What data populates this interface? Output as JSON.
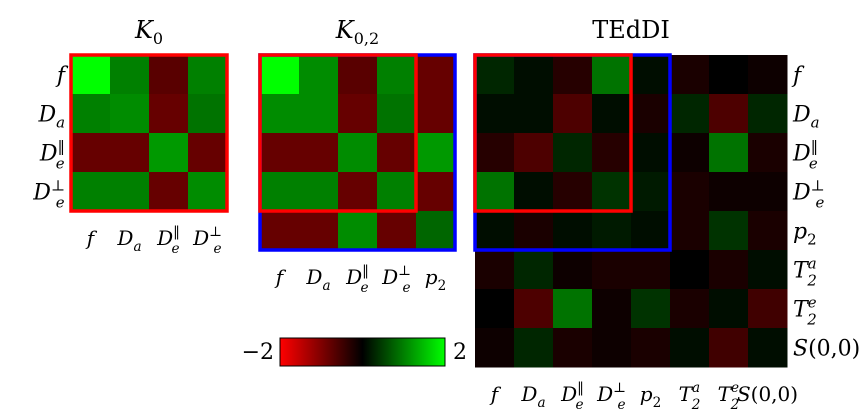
{
  "chart_data": {
    "type": "heatmap",
    "colorbar": {
      "min": -2,
      "max": 2,
      "min_label": "−2",
      "max_label": "2",
      "colors": [
        "#ff0000",
        "#000000",
        "#00ff00"
      ]
    },
    "overlay_colors": {
      "k0_block": "#ff0000",
      "k02_block": "#0000ff"
    },
    "panels": [
      {
        "title": "K_0",
        "title_main": "K",
        "title_sub": "0",
        "row_labels": [
          "f",
          "D_a",
          "D_e^||",
          "D_e^⊥"
        ],
        "col_labels": [
          "f",
          "D_a",
          "D_e^||",
          "D_e^⊥"
        ],
        "values": [
          [
            2.0,
            1.0,
            -0.7,
            1.0
          ],
          [
            1.0,
            1.1,
            -0.8,
            0.9
          ],
          [
            -0.8,
            -0.8,
            1.2,
            -0.8
          ],
          [
            1.0,
            1.0,
            -0.8,
            1.1
          ]
        ],
        "highlights": [
          {
            "rows": [
              0,
              3
            ],
            "cols": [
              0,
              3
            ],
            "color": "#ff0000"
          }
        ]
      },
      {
        "title": "K_{0,2}",
        "title_main": "K",
        "title_sub": "0,2",
        "row_labels": [
          "f",
          "D_a",
          "D_e^||",
          "D_e^⊥",
          "p_2"
        ],
        "col_labels": [
          "f",
          "D_a",
          "D_e^||",
          "D_e^⊥",
          "p_2"
        ],
        "values": [
          [
            2.0,
            1.1,
            -0.7,
            1.0,
            -0.8
          ],
          [
            1.1,
            1.1,
            -0.8,
            0.9,
            -0.8
          ],
          [
            -0.8,
            -0.8,
            1.1,
            -0.8,
            1.2
          ],
          [
            1.0,
            1.0,
            -0.8,
            1.0,
            -0.8
          ],
          [
            -0.8,
            -0.8,
            1.1,
            -0.8,
            0.8
          ]
        ],
        "highlights": [
          {
            "rows": [
              0,
              3
            ],
            "cols": [
              0,
              3
            ],
            "color": "#ff0000"
          },
          {
            "rows": [
              0,
              4
            ],
            "cols": [
              0,
              4
            ],
            "color": "#0000ff"
          }
        ]
      },
      {
        "title": "TEdDI",
        "row_labels": [
          "f",
          "D_a",
          "D_e^||",
          "D_e^⊥",
          "p_2",
          "T_2^a",
          "T_2^e",
          "S(0,0)"
        ],
        "col_labels": [
          "f",
          "D_a",
          "D_e^||",
          "D_e^⊥",
          "p_2",
          "T_2^a",
          "T_2^e",
          "S(0,0)"
        ],
        "values": [
          [
            0.3,
            0.1,
            -0.3,
            0.9,
            0.1,
            -0.2,
            0.0,
            -0.1
          ],
          [
            0.1,
            0.1,
            -0.6,
            0.1,
            -0.2,
            0.3,
            -0.6,
            0.3
          ],
          [
            -0.3,
            -0.6,
            0.3,
            -0.3,
            0.1,
            -0.1,
            0.9,
            -0.2
          ],
          [
            0.9,
            0.1,
            -0.3,
            0.4,
            0.2,
            -0.2,
            -0.1,
            -0.1
          ],
          [
            0.1,
            -0.2,
            0.1,
            0.2,
            0.1,
            -0.2,
            0.4,
            -0.2
          ],
          [
            -0.2,
            0.3,
            -0.1,
            -0.2,
            -0.2,
            0.0,
            -0.2,
            0.1
          ],
          [
            0.0,
            -0.6,
            0.9,
            -0.1,
            0.4,
            -0.2,
            0.1,
            -0.5
          ],
          [
            -0.1,
            0.3,
            -0.2,
            -0.1,
            -0.2,
            0.1,
            -0.5,
            0.1
          ]
        ],
        "highlights": [
          {
            "rows": [
              0,
              3
            ],
            "cols": [
              0,
              3
            ],
            "color": "#ff0000"
          },
          {
            "rows": [
              0,
              4
            ],
            "cols": [
              0,
              4
            ],
            "color": "#0000ff"
          }
        ]
      }
    ]
  }
}
